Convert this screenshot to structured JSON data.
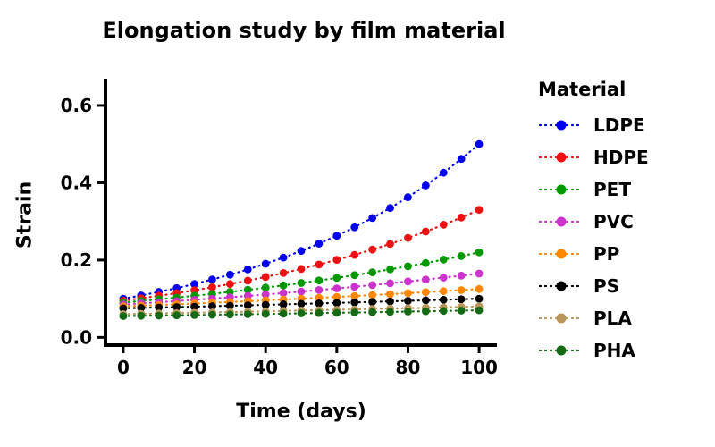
{
  "chart_data": {
    "type": "line",
    "title": "Elongation study by film material",
    "xlabel": "Time (days)",
    "ylabel": "Strain",
    "legend_title": "Material",
    "legend_position": "right",
    "grid": false,
    "marker": "circle",
    "linestyle": "dotted",
    "xlim": [
      -5,
      105
    ],
    "ylim": [
      -0.02,
      0.66
    ],
    "xticks": [
      0,
      20,
      40,
      60,
      80,
      100
    ],
    "yticks": [
      0.0,
      0.2,
      0.4,
      0.6
    ],
    "x": [
      0,
      5,
      10,
      15,
      20,
      25,
      30,
      35,
      40,
      45,
      50,
      55,
      60,
      65,
      70,
      75,
      80,
      85,
      90,
      95,
      100
    ],
    "series": [
      {
        "name": "LDPE",
        "color": "#0000ee",
        "values": [
          0.1,
          0.1084,
          0.1175,
          0.1273,
          0.138,
          0.1496,
          0.1621,
          0.1757,
          0.1904,
          0.2064,
          0.2237,
          0.2424,
          0.2628,
          0.2848,
          0.3087,
          0.3346,
          0.3626,
          0.393,
          0.426,
          0.4617,
          0.5
        ]
      },
      {
        "name": "HDPE",
        "color": "#ee1111",
        "values": [
          0.095,
          0.1011,
          0.1076,
          0.1145,
          0.1219,
          0.1297,
          0.138,
          0.1469,
          0.1563,
          0.1664,
          0.177,
          0.1884,
          0.2005,
          0.2134,
          0.2271,
          0.2417,
          0.2572,
          0.2737,
          0.2913,
          0.31,
          0.33
        ]
      },
      {
        "name": "PET",
        "color": "#009900",
        "values": [
          0.09,
          0.0941,
          0.0984,
          0.1029,
          0.1076,
          0.1125,
          0.1177,
          0.123,
          0.1287,
          0.1345,
          0.1407,
          0.1471,
          0.1538,
          0.1609,
          0.1682,
          0.1759,
          0.1839,
          0.1923,
          0.2011,
          0.2103,
          0.22
        ]
      },
      {
        "name": "PVC",
        "color": "#cc33cc",
        "values": [
          0.085,
          0.0879,
          0.0908,
          0.0939,
          0.0971,
          0.1003,
          0.1037,
          0.1072,
          0.1108,
          0.1146,
          0.1185,
          0.1225,
          0.1266,
          0.1309,
          0.1353,
          0.1399,
          0.1446,
          0.1495,
          0.1545,
          0.1597,
          0.165
        ]
      },
      {
        "name": "PP",
        "color": "#ff8800",
        "values": [
          0.08,
          0.0818,
          0.0837,
          0.0856,
          0.0875,
          0.0895,
          0.0915,
          0.0936,
          0.0957,
          0.0978,
          0.1,
          0.1023,
          0.1046,
          0.107,
          0.1094,
          0.1119,
          0.1144,
          0.117,
          0.1196,
          0.1223,
          0.125
        ]
      },
      {
        "name": "PS",
        "color": "#000000",
        "values": [
          0.075,
          0.0761,
          0.0772,
          0.0783,
          0.0794,
          0.0806,
          0.0818,
          0.0829,
          0.0841,
          0.0854,
          0.0866,
          0.0879,
          0.0891,
          0.0904,
          0.0917,
          0.0931,
          0.0944,
          0.0958,
          0.0972,
          0.0986,
          0.1
        ]
      },
      {
        "name": "PLA",
        "color": "#b9975b",
        "values": [
          0.06,
          0.0609,
          0.0617,
          0.0626,
          0.0635,
          0.0645,
          0.0654,
          0.0664,
          0.0673,
          0.0683,
          0.0693,
          0.0703,
          0.0713,
          0.0723,
          0.0734,
          0.0744,
          0.0755,
          0.0766,
          0.0777,
          0.0789,
          0.08
        ]
      },
      {
        "name": "PHA",
        "color": "#156b15",
        "values": [
          0.055,
          0.0557,
          0.0563,
          0.057,
          0.0577,
          0.0584,
          0.0591,
          0.0598,
          0.0606,
          0.0613,
          0.062,
          0.0628,
          0.0636,
          0.0643,
          0.0651,
          0.0659,
          0.0667,
          0.0675,
          0.0683,
          0.0692,
          0.07
        ]
      }
    ]
  }
}
